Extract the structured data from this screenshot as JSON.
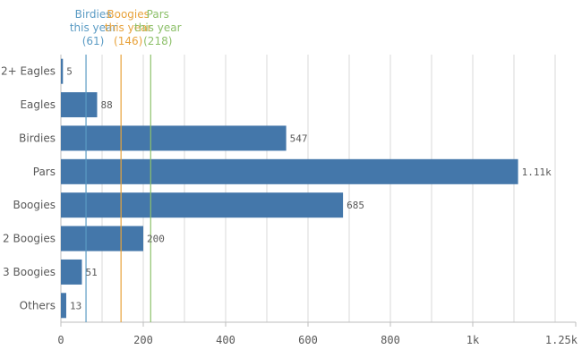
{
  "chart_data": {
    "type": "bar",
    "orientation": "horizontal",
    "categories": [
      "2+ Eagles",
      "Eagles",
      "Birdies",
      "Pars",
      "Boogies",
      "2 Boogies",
      "3 Boogies",
      "Others"
    ],
    "values": [
      5,
      88,
      547,
      1110,
      685,
      200,
      51,
      13
    ],
    "value_labels": [
      "5",
      "88",
      "547",
      "1.11k",
      "685",
      "200",
      "51",
      "13"
    ],
    "xlim": [
      0,
      1250
    ],
    "x_ticks": [
      0,
      200,
      400,
      600,
      800,
      1000,
      1250
    ],
    "x_tick_labels": [
      "0",
      "200",
      "400",
      "600",
      "800",
      "1k",
      "1.25k"
    ],
    "grid": true,
    "bar_color": "#4477aa",
    "reference_lines": [
      {
        "label_line1": "Birdies",
        "label_line2": "this year",
        "value_label": "(61)",
        "value": 61,
        "color": "#5b9bc4"
      },
      {
        "label_line1": "Boogies",
        "label_line2": "this year",
        "value_label": "(146)",
        "value": 146,
        "color": "#e8a23a"
      },
      {
        "label_line1": "Pars",
        "label_line2": "this year",
        "value_label": "(218)",
        "value": 218,
        "color": "#8dc06a"
      }
    ]
  }
}
